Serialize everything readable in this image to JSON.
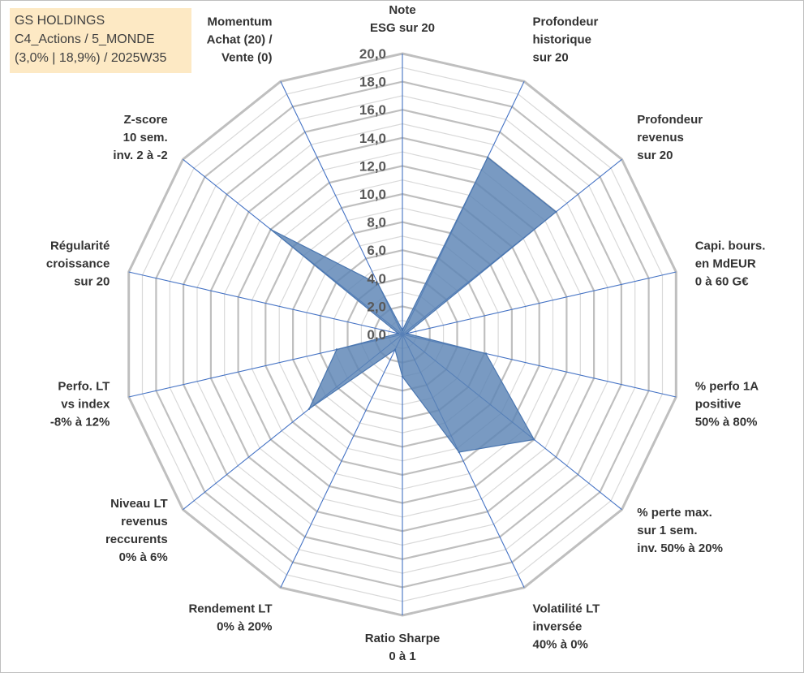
{
  "info": {
    "line1": "GS HOLDINGS",
    "line2": "C4_Actions / 5_MONDE",
    "line3": "(3,0% | 18,9%) / 2025W35"
  },
  "colors": {
    "fill": "#5b84b5",
    "stroke": "#4a76b0",
    "spokes": "#4472c4",
    "grid": "#bfbfbf",
    "box": "#fde9c4"
  },
  "chart_data": {
    "type": "radar",
    "rmin": 0,
    "rmax": 20,
    "tick_step": 2,
    "tick_labels": [
      "0,0",
      "2,0",
      "4,0",
      "6,0",
      "8,0",
      "10,0",
      "12,0",
      "14,0",
      "16,0",
      "18,0",
      "20,0"
    ],
    "grid": true,
    "axes": [
      {
        "label": [
          "Note",
          "ESG sur 20"
        ],
        "value": 0.3
      },
      {
        "label": [
          "Profondeur",
          "historique",
          "sur 20"
        ],
        "value": 14.0
      },
      {
        "label": [
          "Profondeur",
          "revenus",
          "sur 20"
        ],
        "value": 14.0
      },
      {
        "label": [
          "Capi. bours.",
          "en MdEUR",
          "0 à 60 G€"
        ],
        "value": 0.3
      },
      {
        "label": [
          "% perfo 1A",
          "positive",
          "50% à 80%"
        ],
        "value": 6.1
      },
      {
        "label": [
          "% perte max.",
          "sur 1 sem.",
          "inv. 50% à 20%"
        ],
        "value": 12.0
      },
      {
        "label": [
          "Volatilité LT",
          "inversée",
          "40% à 0%"
        ],
        "value": 9.3
      },
      {
        "label": [
          "Ratio Sharpe",
          "0 à 1"
        ],
        "value": 3.0
      },
      {
        "label": [
          "Rendement LT",
          "0% à 20%"
        ],
        "value": 1.2
      },
      {
        "label": [
          "Niveau LT",
          "revenus",
          "reccurents",
          "0% à 6%"
        ],
        "value": 8.5
      },
      {
        "label": [
          "Perfo. LT",
          "vs index",
          "-8% à 12%"
        ],
        "value": 4.8
      },
      {
        "label": [
          "Régularité",
          "croissance",
          "sur 20"
        ],
        "value": 0.3
      },
      {
        "label": [
          "Z-score",
          "10 sem.",
          "inv. 2 à -2"
        ],
        "value": 12.0
      },
      {
        "label": [
          "Momentum",
          "Achat (20) /",
          "Vente (0)"
        ],
        "value": 4.0
      }
    ]
  }
}
